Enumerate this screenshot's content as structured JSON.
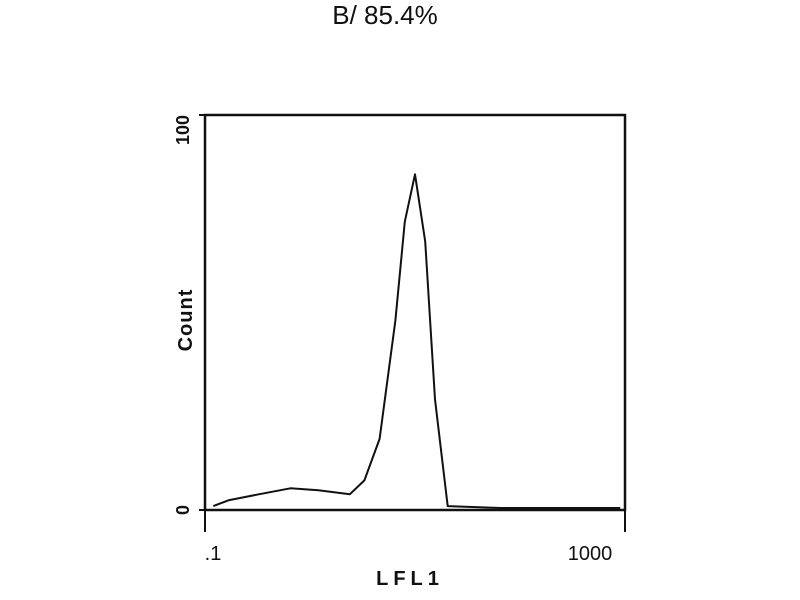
{
  "chart_data": {
    "type": "line",
    "title": "B/ 85.4%",
    "x_label": "LFL1",
    "y_label": "Count",
    "log_x": true,
    "color": "#111111",
    "x": [
      0.12,
      0.17,
      0.33,
      0.65,
      1.2,
      2.4,
      3.3,
      4.6,
      6.5,
      8,
      10,
      12.5,
      15.5,
      20.5,
      65,
      900
    ],
    "values": [
      1,
      2.5,
      4,
      5.5,
      5,
      4,
      7.5,
      18,
      48,
      73,
      85,
      68,
      28,
      1,
      0.5,
      0.5
    ],
    "xlim": [
      0.1,
      1000
    ],
    "xticks": [
      {
        "value": 0.1,
        "label": ".1"
      },
      1000
    ],
    "ylim": [
      0,
      100
    ],
    "yticks": [
      0,
      100
    ]
  }
}
